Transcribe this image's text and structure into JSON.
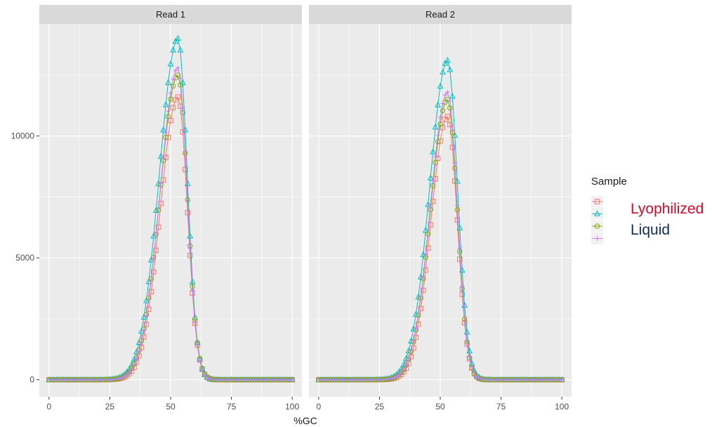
{
  "chart_data": {
    "type": "line",
    "xlabel": "%GC",
    "ylabel": "",
    "xlim": [
      -4,
      104
    ],
    "ylim": [
      -700,
      14600
    ],
    "x_ticks": [
      0,
      25,
      50,
      75,
      100
    ],
    "y_ticks": [
      0,
      5000,
      10000
    ],
    "grid": true,
    "legend_placement": "right",
    "legend_title": "Sample",
    "legend_overlay_labels": [
      {
        "text": "Lyophilized",
        "color": "#d10a2a"
      },
      {
        "text": "Liquid",
        "color": "#0f2d5c"
      }
    ],
    "series_styles": [
      {
        "color": "#F8766D",
        "marker": "square"
      },
      {
        "color": "#00BFC4",
        "marker": "triangle"
      },
      {
        "color": "#7CAE00",
        "marker": "circle"
      },
      {
        "color": "#C77CFF",
        "marker": "plus"
      }
    ],
    "panels": [
      {
        "title": "Read 1",
        "series": [
          {
            "peak_x": 53,
            "peak_y": 11600,
            "sigma_left": 7.2,
            "sigma_right": 3.9
          },
          {
            "peak_x": 53,
            "peak_y": 14000,
            "sigma_left": 7.6,
            "sigma_right": 3.8
          },
          {
            "peak_x": 53,
            "peak_y": 12500,
            "sigma_left": 7.4,
            "sigma_right": 3.9
          },
          {
            "peak_x": 53,
            "peak_y": 12800,
            "sigma_left": 7.3,
            "sigma_right": 3.8
          }
        ]
      },
      {
        "title": "Read 2",
        "series": [
          {
            "peak_x": 53,
            "peak_y": 10800,
            "sigma_left": 6.8,
            "sigma_right": 4.0
          },
          {
            "peak_x": 53,
            "peak_y": 13100,
            "sigma_left": 7.3,
            "sigma_right": 4.1
          },
          {
            "peak_x": 53,
            "peak_y": 11500,
            "sigma_left": 7.0,
            "sigma_right": 4.0
          },
          {
            "peak_x": 53,
            "peak_y": 11800,
            "sigma_left": 7.0,
            "sigma_right": 4.0
          }
        ]
      }
    ]
  }
}
